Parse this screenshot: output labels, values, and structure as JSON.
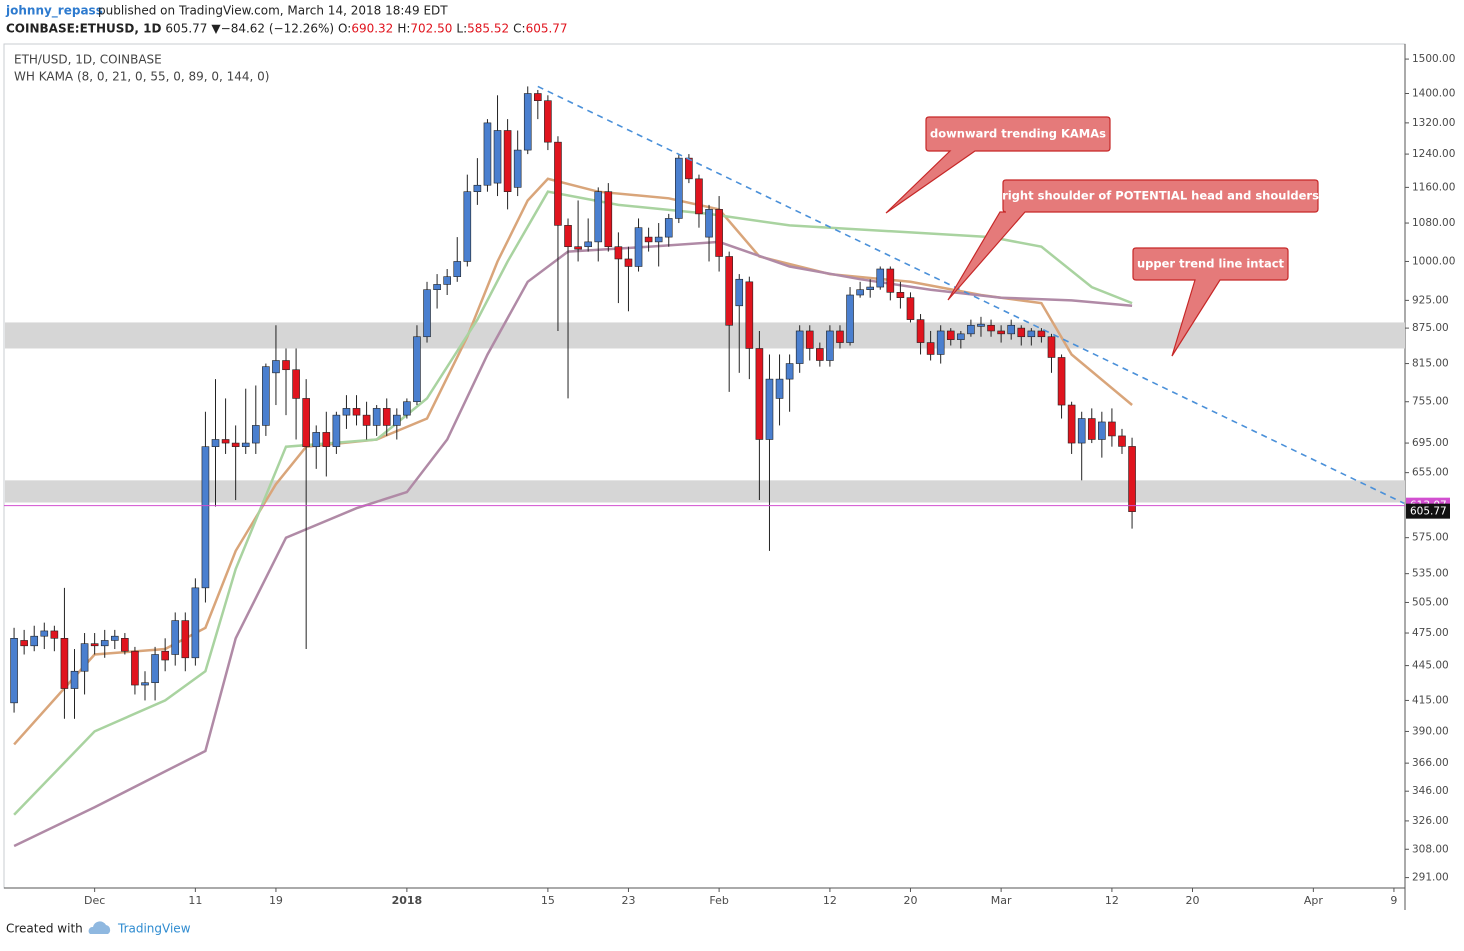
{
  "header": {
    "user": "johnny_repass",
    "published": "published on TradingView.com, March 14, 2018 18:49 EDT",
    "symbol": "COINBASE:ETHUSD, 1D",
    "price": "605.77",
    "change": "▼−84.62 (−12.26%)",
    "ohlc": [
      {
        "key": "O:",
        "value": "690.32"
      },
      {
        "key": "H:",
        "value": "702.50"
      },
      {
        "key": "L:",
        "value": "585.52"
      },
      {
        "key": "C:",
        "value": "605.77"
      }
    ]
  },
  "footer": {
    "created": "Created with",
    "brand": "TradingView"
  },
  "chart_data": {
    "type": "candlestick",
    "title": "ETH/USD, 1D, COINBASE",
    "subtitle": "WH KAMA (8, 0, 21, 0, 55, 0, 89, 0, 144, 0)",
    "x": [
      "2017-11-23",
      "2017-11-24",
      "2017-11-25",
      "2017-11-26",
      "2017-11-27",
      "2017-11-28",
      "2017-11-29",
      "2017-11-30",
      "2017-12-01",
      "2017-12-02",
      "2017-12-03",
      "2017-12-04",
      "2017-12-05",
      "2017-12-06",
      "2017-12-07",
      "2017-12-08",
      "2017-12-09",
      "2017-12-10",
      "2017-12-11",
      "2017-12-12",
      "2017-12-13",
      "2017-12-14",
      "2017-12-15",
      "2017-12-16",
      "2017-12-17",
      "2017-12-18",
      "2017-12-19",
      "2017-12-20",
      "2017-12-21",
      "2017-12-22",
      "2017-12-23",
      "2017-12-24",
      "2017-12-25",
      "2017-12-26",
      "2017-12-27",
      "2017-12-28",
      "2017-12-29",
      "2017-12-30",
      "2017-12-31",
      "2018-01-01",
      "2018-01-02",
      "2018-01-03",
      "2018-01-04",
      "2018-01-05",
      "2018-01-06",
      "2018-01-07",
      "2018-01-08",
      "2018-01-09",
      "2018-01-10",
      "2018-01-11",
      "2018-01-12",
      "2018-01-13",
      "2018-01-14",
      "2018-01-15",
      "2018-01-16",
      "2018-01-17",
      "2018-01-18",
      "2018-01-19",
      "2018-01-20",
      "2018-01-21",
      "2018-01-22",
      "2018-01-23",
      "2018-01-24",
      "2018-01-25",
      "2018-01-26",
      "2018-01-27",
      "2018-01-28",
      "2018-01-29",
      "2018-01-30",
      "2018-01-31",
      "2018-02-01",
      "2018-02-02",
      "2018-02-03",
      "2018-02-04",
      "2018-02-05",
      "2018-02-06",
      "2018-02-07",
      "2018-02-08",
      "2018-02-09",
      "2018-02-10",
      "2018-02-11",
      "2018-02-12",
      "2018-02-13",
      "2018-02-14",
      "2018-02-15",
      "2018-02-16",
      "2018-02-17",
      "2018-02-18",
      "2018-02-19",
      "2018-02-20",
      "2018-02-21",
      "2018-02-22",
      "2018-02-23",
      "2018-02-24",
      "2018-02-25",
      "2018-02-26",
      "2018-02-27",
      "2018-02-28",
      "2018-03-01",
      "2018-03-02",
      "2018-03-03",
      "2018-03-04",
      "2018-03-05",
      "2018-03-06",
      "2018-03-07",
      "2018-03-08",
      "2018-03-09",
      "2018-03-10",
      "2018-03-11",
      "2018-03-12",
      "2018-03-13",
      "2018-03-14"
    ],
    "open": [
      413,
      468,
      463,
      472,
      477,
      470,
      425,
      440,
      465,
      463,
      468,
      470,
      458,
      428,
      430,
      458,
      455,
      487,
      452,
      520,
      690,
      700,
      695,
      690,
      695,
      720,
      800,
      820,
      805,
      760,
      690,
      710,
      690,
      735,
      745,
      735,
      720,
      745,
      720,
      735,
      755,
      860,
      945,
      955,
      970,
      1000,
      1150,
      1165,
      1170,
      1300,
      1160,
      1250,
      1400,
      1380,
      1270,
      1075,
      1030,
      1030,
      1040,
      1150,
      1030,
      1005,
      990,
      1050,
      1040,
      1050,
      1090,
      1230,
      1180,
      1050,
      1110,
      1010,
      915,
      960,
      840,
      700,
      760,
      790,
      815,
      870,
      840,
      820,
      870,
      850,
      935,
      945,
      950,
      985,
      940,
      930,
      890,
      850,
      830,
      870,
      855,
      865,
      878,
      880,
      870,
      865,
      875,
      860,
      870,
      860,
      825,
      750,
      695,
      730,
      700,
      725,
      705,
      690.32
    ],
    "high": [
      480,
      478,
      482,
      485,
      482,
      520,
      460,
      475,
      475,
      478,
      478,
      475,
      462,
      440,
      462,
      470,
      495,
      495,
      530,
      740,
      790,
      760,
      720,
      775,
      780,
      815,
      880,
      840,
      840,
      790,
      720,
      740,
      740,
      765,
      765,
      755,
      750,
      760,
      745,
      760,
      880,
      960,
      975,
      985,
      1050,
      1190,
      1230,
      1330,
      1395,
      1330,
      1300,
      1420,
      1410,
      1395,
      1285,
      1090,
      1130,
      1090,
      1160,
      1170,
      1060,
      1030,
      1090,
      1070,
      1080,
      1100,
      1240,
      1240,
      1190,
      1120,
      1140,
      1020,
      975,
      970,
      870,
      830,
      830,
      830,
      880,
      880,
      850,
      880,
      880,
      950,
      960,
      965,
      990,
      990,
      960,
      940,
      900,
      870,
      880,
      875,
      870,
      890,
      895,
      890,
      880,
      890,
      880,
      875,
      875,
      865,
      830,
      755,
      740,
      745,
      740,
      745,
      715,
      702.5
    ],
    "low": [
      405,
      455,
      458,
      460,
      458,
      400,
      400,
      420,
      455,
      452,
      460,
      455,
      420,
      415,
      415,
      440,
      445,
      440,
      445,
      505,
      612,
      680,
      620,
      680,
      680,
      705,
      750,
      735,
      700,
      460,
      660,
      650,
      680,
      715,
      720,
      700,
      705,
      705,
      700,
      730,
      750,
      850,
      910,
      935,
      960,
      990,
      1120,
      1150,
      1140,
      1110,
      1140,
      1240,
      1330,
      1250,
      870,
      760,
      1000,
      1020,
      1000,
      1020,
      920,
      905,
      980,
      1020,
      990,
      1030,
      1080,
      1170,
      1070,
      1000,
      980,
      770,
      800,
      790,
      620,
      560,
      720,
      740,
      800,
      820,
      810,
      810,
      840,
      845,
      930,
      930,
      945,
      925,
      910,
      885,
      830,
      820,
      815,
      845,
      840,
      860,
      860,
      860,
      850,
      855,
      845,
      845,
      850,
      800,
      730,
      680,
      645,
      695,
      675,
      690,
      680,
      585.52
    ],
    "close": [
      470,
      463,
      472,
      477,
      470,
      425,
      440,
      465,
      463,
      468,
      472,
      458,
      428,
      430,
      455,
      450,
      487,
      452,
      520,
      690,
      700,
      695,
      690,
      695,
      720,
      810,
      820,
      805,
      760,
      690,
      710,
      690,
      735,
      745,
      735,
      720,
      745,
      720,
      735,
      755,
      860,
      945,
      955,
      970,
      1000,
      1150,
      1165,
      1320,
      1300,
      1150,
      1250,
      1400,
      1380,
      1270,
      1075,
      1030,
      1025,
      1040,
      1150,
      1030,
      1005,
      990,
      1070,
      1040,
      1050,
      1090,
      1230,
      1180,
      1100,
      1110,
      1010,
      880,
      965,
      840,
      700,
      790,
      790,
      815,
      870,
      840,
      820,
      870,
      850,
      935,
      945,
      950,
      985,
      940,
      930,
      890,
      850,
      830,
      870,
      855,
      865,
      880,
      882,
      870,
      865,
      880,
      860,
      870,
      860,
      825,
      750,
      695,
      730,
      700,
      725,
      705,
      690.39,
      605.77
    ],
    "up_color": "#4a7fcf",
    "down_color": "#e0141e",
    "overlays": [
      {
        "color": "#d9a57a",
        "x": [
          "2017-11-23",
          "2017-12-01",
          "2017-12-08",
          "2017-12-12",
          "2017-12-15",
          "2017-12-19",
          "2017-12-22",
          "2017-12-29",
          "2018-01-03",
          "2018-01-07",
          "2018-01-10",
          "2018-01-13",
          "2018-01-15",
          "2018-01-20",
          "2018-01-27",
          "2018-02-01",
          "2018-02-05",
          "2018-02-12",
          "2018-02-20",
          "2018-02-27",
          "2018-03-05",
          "2018-03-08",
          "2018-03-14"
        ],
        "values": [
          380,
          455,
          460,
          480,
          560,
          640,
          690,
          700,
          730,
          860,
          1000,
          1130,
          1180,
          1150,
          1135,
          1110,
          1010,
          975,
          960,
          935,
          920,
          830,
          750
        ]
      },
      {
        "color": "#a9d3a0",
        "x": [
          "2017-11-23",
          "2017-12-01",
          "2017-12-08",
          "2017-12-12",
          "2017-12-15",
          "2017-12-20",
          "2017-12-29",
          "2018-01-03",
          "2018-01-08",
          "2018-01-11",
          "2018-01-15",
          "2018-01-22",
          "2018-01-31",
          "2018-02-08",
          "2018-02-20",
          "2018-02-28",
          "2018-03-05",
          "2018-03-10",
          "2018-03-14"
        ],
        "values": [
          330,
          390,
          415,
          440,
          540,
          690,
          700,
          760,
          890,
          1000,
          1150,
          1120,
          1100,
          1075,
          1060,
          1050,
          1030,
          950,
          920
        ]
      },
      {
        "color": "#b08aa6",
        "x": [
          "2017-11-23",
          "2017-12-01",
          "2017-12-08",
          "2017-12-12",
          "2017-12-15",
          "2017-12-20",
          "2017-12-27",
          "2018-01-01",
          "2018-01-05",
          "2018-01-09",
          "2018-01-13",
          "2018-01-17",
          "2018-01-25",
          "2018-02-01",
          "2018-02-08",
          "2018-02-15",
          "2018-02-22",
          "2018-03-01",
          "2018-03-08",
          "2018-03-14"
        ],
        "values": [
          310,
          335,
          360,
          375,
          470,
          575,
          610,
          630,
          700,
          830,
          960,
          1020,
          1030,
          1040,
          990,
          965,
          945,
          930,
          925,
          915
        ]
      }
    ],
    "zones": [
      {
        "low": 840,
        "high": 885
      },
      {
        "low": 617,
        "high": 645
      }
    ],
    "zone_color": "#d6d6d6",
    "trend_line": {
      "x": [
        "2018-01-14",
        "2018-04-10"
      ],
      "values": [
        1420,
        616
      ],
      "color": "#4a90d9"
    },
    "hline": {
      "value": 613.07,
      "color": "#d24fd0"
    },
    "last_price": 605.77,
    "annotations": [
      "downward trending KAMAs",
      "right shoulder of POTENTIAL head and shoulders",
      "upper trend line intact"
    ],
    "xlim": [
      "2017-11-22",
      "2018-04-10"
    ],
    "xticks": [
      {
        "value": "2017-12-01",
        "label": "Dec"
      },
      {
        "value": "2017-12-11",
        "label": "11"
      },
      {
        "value": "2017-12-19",
        "label": "19"
      },
      {
        "value": "2018-01-01",
        "label": "2018"
      },
      {
        "value": "2018-01-15",
        "label": "15"
      },
      {
        "value": "2018-01-23",
        "label": "23"
      },
      {
        "value": "2018-02-01",
        "label": "Feb"
      },
      {
        "value": "2018-02-12",
        "label": "12"
      },
      {
        "value": "2018-02-20",
        "label": "20"
      },
      {
        "value": "2018-03-01",
        "label": "Mar"
      },
      {
        "value": "2018-03-12",
        "label": "12"
      },
      {
        "value": "2018-03-20",
        "label": "20"
      },
      {
        "value": "2018-04-01",
        "label": "Apr"
      },
      {
        "value": "2018-04-09",
        "label": "9"
      }
    ],
    "ylim": [
      285,
      1546
    ],
    "log_scale": true,
    "yticks": [
      {
        "value": 1500,
        "label": "1500.00"
      },
      {
        "value": 1400,
        "label": "1400.00"
      },
      {
        "value": 1320,
        "label": "1320.00"
      },
      {
        "value": 1240,
        "label": "1240.00"
      },
      {
        "value": 1160,
        "label": "1160.00"
      },
      {
        "value": 1080,
        "label": "1080.00"
      },
      {
        "value": 1000,
        "label": "1000.00"
      },
      {
        "value": 925,
        "label": "925.00"
      },
      {
        "value": 875,
        "label": "875.00"
      },
      {
        "value": 815,
        "label": "815.00"
      },
      {
        "value": 755,
        "label": "755.00"
      },
      {
        "value": 695,
        "label": "695.00"
      },
      {
        "value": 655,
        "label": "655.00"
      },
      {
        "value": 575,
        "label": "575.00"
      },
      {
        "value": 535,
        "label": "535.00"
      },
      {
        "value": 505,
        "label": "505.00"
      },
      {
        "value": 475,
        "label": "475.00"
      },
      {
        "value": 445,
        "label": "445.00"
      },
      {
        "value": 415,
        "label": "415.00"
      },
      {
        "value": 390,
        "label": "390.00"
      },
      {
        "value": 366,
        "label": "366.00"
      },
      {
        "value": 346,
        "label": "346.00"
      },
      {
        "value": 326,
        "label": "326.00"
      },
      {
        "value": 308,
        "label": "308.00"
      },
      {
        "value": 291,
        "label": "291.00"
      }
    ]
  }
}
